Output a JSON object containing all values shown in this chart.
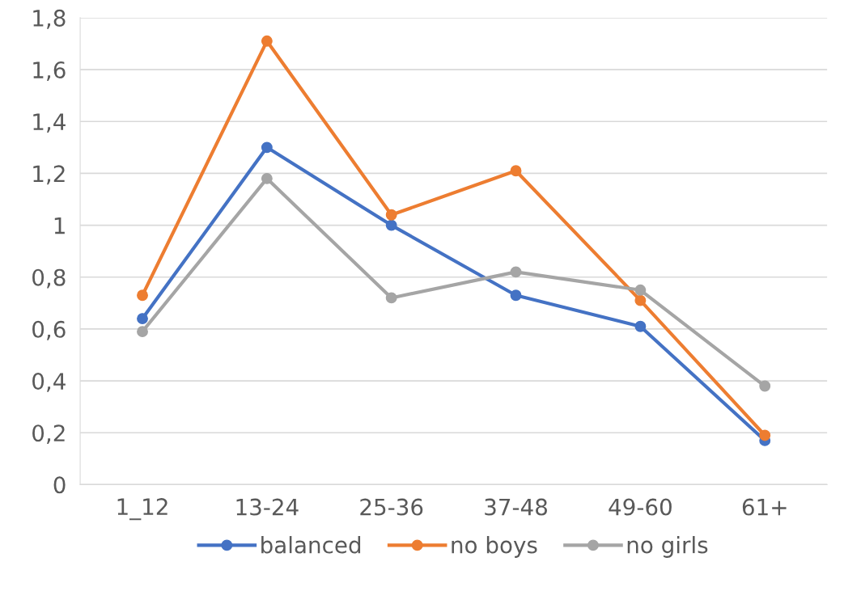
{
  "chart_data": {
    "type": "line",
    "categories": [
      "1_12",
      "13-24",
      "25-36",
      "37-48",
      "49-60",
      "61+"
    ],
    "series": [
      {
        "name": "balanced",
        "color": "#4472c4",
        "values": [
          0.64,
          1.3,
          1.0,
          0.73,
          0.61,
          0.17
        ]
      },
      {
        "name": "no boys",
        "color": "#ed7d31",
        "values": [
          0.73,
          1.71,
          1.04,
          1.21,
          0.71,
          0.19
        ]
      },
      {
        "name": "no girls",
        "color": "#a5a5a5",
        "values": [
          0.59,
          1.18,
          0.72,
          0.82,
          0.75,
          0.38
        ]
      }
    ],
    "ylim": [
      0,
      1.8
    ],
    "yticks": [
      0,
      {
        "value": 0.2,
        "label": "0,2"
      },
      {
        "value": 0.4,
        "label": "0,4"
      },
      {
        "value": 0.6,
        "label": "0,6"
      },
      {
        "value": 0.8,
        "label": "0,8"
      },
      1,
      {
        "value": 1.2,
        "label": "1,2"
      },
      {
        "value": 1.4,
        "label": "1,4"
      },
      {
        "value": 1.6,
        "label": "1,6"
      },
      {
        "value": 1.8,
        "label": "1,8"
      }
    ],
    "grid": "y",
    "legend": "bottom",
    "marker": "circle",
    "line_style": "solid"
  }
}
